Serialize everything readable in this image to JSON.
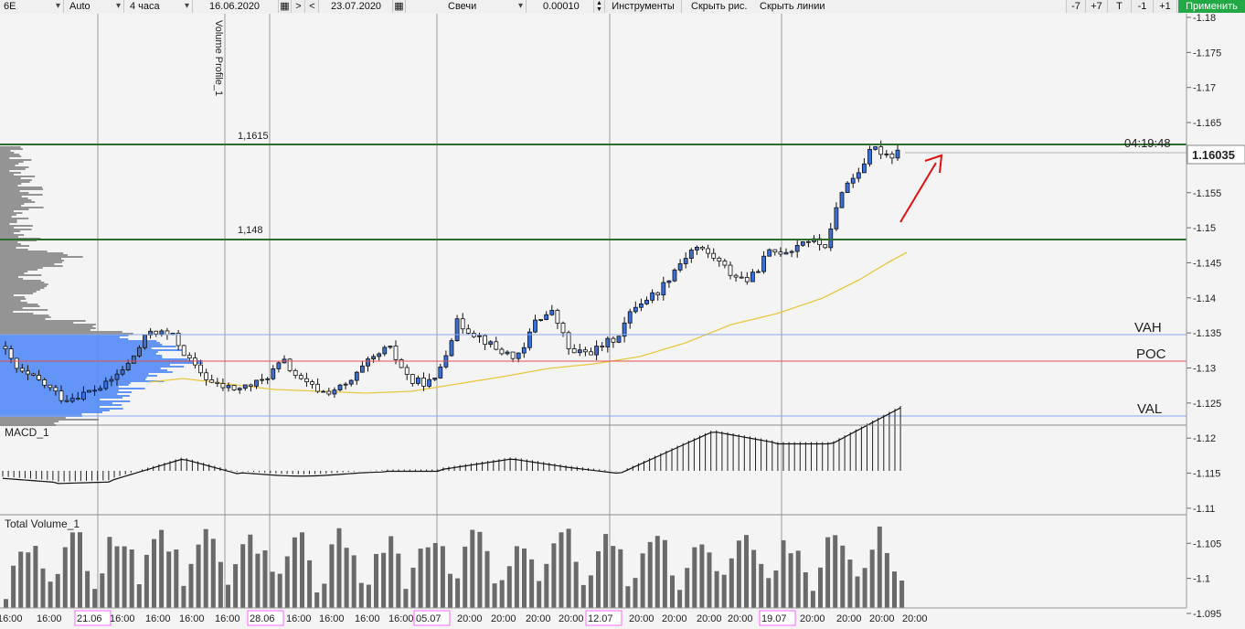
{
  "toolbar": {
    "symbol": "6E",
    "scale": "Auto",
    "timeframe": "4 часа",
    "date_from": "16.06.2020",
    "nav_next": ">",
    "nav_prev": "<",
    "date_to": "23.07.2020",
    "chart_type": "Свечи",
    "step": "0.00010",
    "instruments": "Инструменты",
    "hide_drawings": "Скрыть рис.",
    "hide_lines": "Скрыть линии",
    "zoom_minus7": "-7",
    "zoom_plus7": "+7",
    "t_button": "T",
    "zoom_minus1": "-1",
    "zoom_plus1": "+1",
    "apply": "Применить"
  },
  "colors": {
    "bull": "#3a6fd8",
    "bear": "#ffffff",
    "profile_value_area": "#5b8ff5",
    "profile_outside": "#8a8a8a",
    "level_line": "#2e6b2e",
    "vah_val": "#8aa8e8",
    "poc": "#e05050",
    "ma": "#e8c840",
    "arrow": "#e01010",
    "date_highlight": "#ff66ff"
  },
  "labels": {
    "volume_profile": "Volume Profile_1",
    "level_high": "1,1615",
    "level_low": "1,148",
    "timer": "04:19:48",
    "vah": "VAH",
    "poc": "POC",
    "val": "VAL",
    "macd": "MACD_1",
    "total_volume": "Total Volume_1",
    "current_price": "1.16035"
  },
  "price_axis": [
    "1.18",
    "1.175",
    "1.17",
    "1.165",
    "1.16",
    "1.155",
    "1.15",
    "1.145",
    "1.14",
    "1.135",
    "1.13",
    "1.125",
    "1.12",
    "1.115",
    "1.11",
    "1.105",
    "1.1",
    "1.095"
  ],
  "time_axis": [
    {
      "text": "16:00",
      "hl": false
    },
    {
      "text": "16:00",
      "hl": false
    },
    {
      "text": "21.06",
      "hl": true
    },
    {
      "text": "16:00",
      "hl": false
    },
    {
      "text": "16:00",
      "hl": false
    },
    {
      "text": "16:00",
      "hl": false
    },
    {
      "text": "16:00",
      "hl": false
    },
    {
      "text": "28.06",
      "hl": true
    },
    {
      "text": "16:00",
      "hl": false
    },
    {
      "text": "16:00",
      "hl": false
    },
    {
      "text": "16:00",
      "hl": false
    },
    {
      "text": "16:00",
      "hl": false
    },
    {
      "text": "05.07",
      "hl": true
    },
    {
      "text": "20:00",
      "hl": false
    },
    {
      "text": "20:00",
      "hl": false
    },
    {
      "text": "20:00",
      "hl": false
    },
    {
      "text": "20:00",
      "hl": false
    },
    {
      "text": "12.07",
      "hl": true
    },
    {
      "text": "20:00",
      "hl": false
    },
    {
      "text": "20:00",
      "hl": false
    },
    {
      "text": "20:00",
      "hl": false
    },
    {
      "text": "20:00",
      "hl": false
    },
    {
      "text": "19.07",
      "hl": true
    },
    {
      "text": "20:00",
      "hl": false
    },
    {
      "text": "20:00",
      "hl": false
    },
    {
      "text": "20:00",
      "hl": false
    },
    {
      "text": "20:00",
      "hl": false
    }
  ]
}
